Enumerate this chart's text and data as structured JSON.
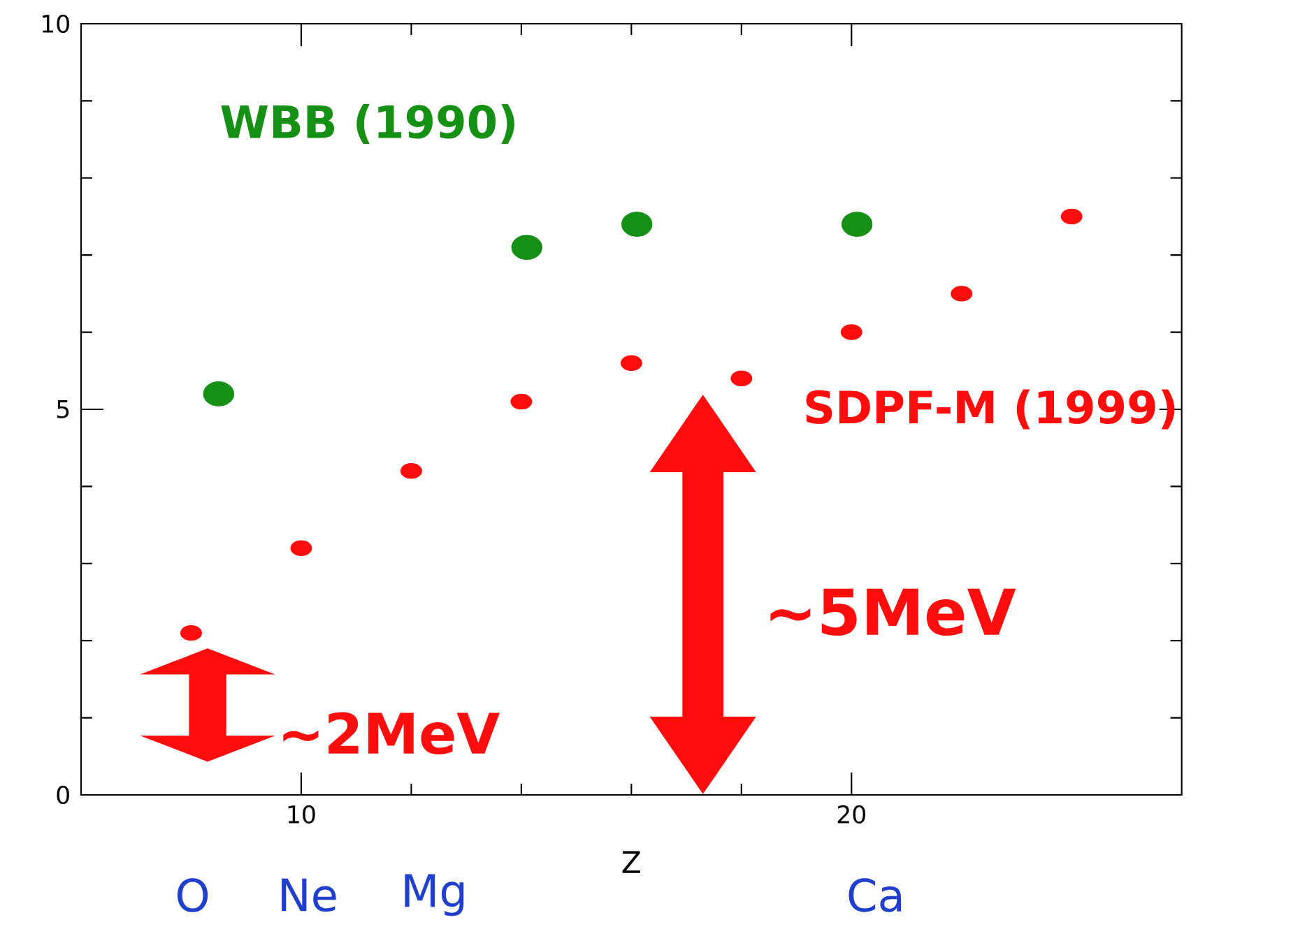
{
  "chart_data": {
    "type": "scatter",
    "xlabel": "Z",
    "xlim": [
      6,
      26
    ],
    "ylim": [
      0,
      10
    ],
    "xticks": [
      10,
      20
    ],
    "yticks": [
      0,
      5,
      10
    ],
    "series": [
      {
        "name": "WBB (1990)",
        "color": "#159015",
        "x": [
          8.5,
          14.1,
          16.1,
          20.1
        ],
        "values": [
          5.2,
          7.1,
          7.4,
          7.4
        ]
      },
      {
        "name": "SDPF-M (1999)",
        "color": "#ff0d0d",
        "x": [
          8,
          10,
          12,
          14,
          16,
          18,
          20,
          22,
          24
        ],
        "values": [
          2.1,
          3.2,
          4.2,
          5.1,
          5.6,
          5.4,
          6.0,
          6.5,
          7.5
        ]
      }
    ],
    "annotations": [
      "~5MeV",
      "~2MeV",
      "O",
      "Ne",
      "Mg",
      "Ca"
    ]
  }
}
